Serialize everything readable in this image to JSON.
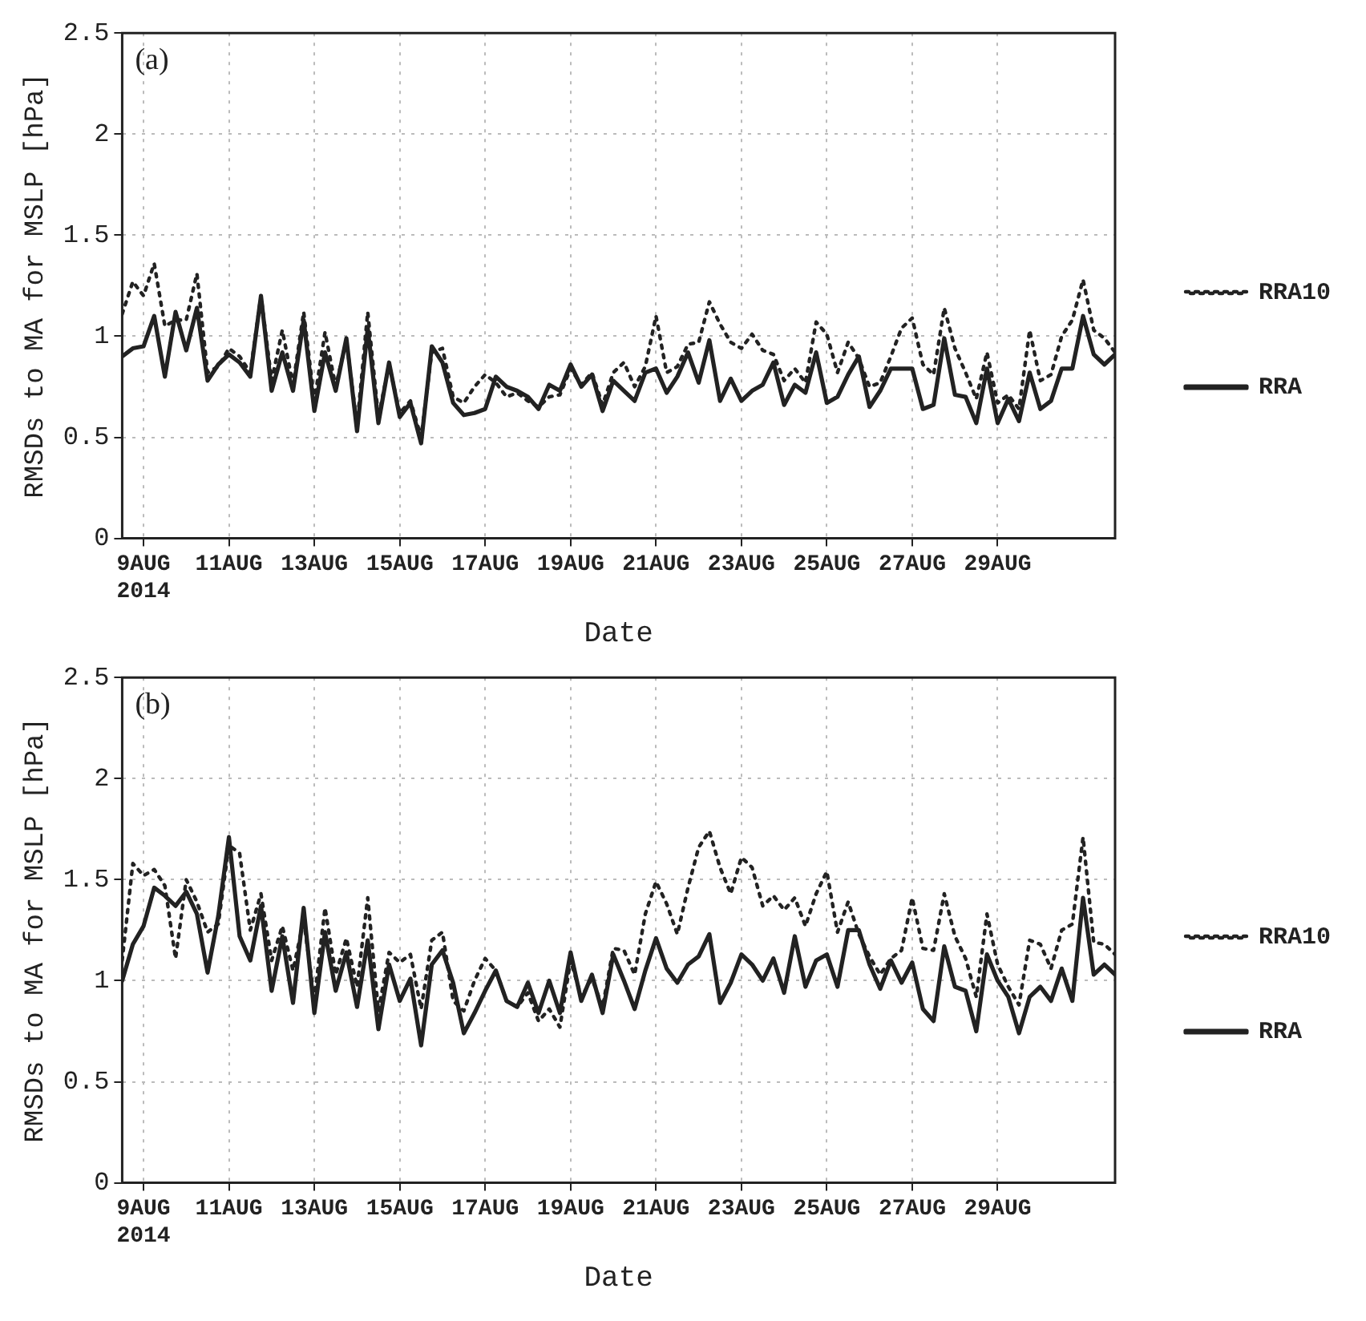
{
  "chart_data": [
    {
      "type": "line",
      "annotations": [
        "(a)"
      ],
      "xlabel": "Date",
      "ylabel": "RMSDs to MA for MSLP [hPa]",
      "x": [
        "2014-08-08T12:00",
        "2014-08-08T18:00",
        "2014-08-09T00:00",
        "2014-08-09T06:00",
        "2014-08-09T12:00",
        "2014-08-09T18:00",
        "2014-08-10T00:00",
        "2014-08-10T06:00",
        "2014-08-10T12:00",
        "2014-08-10T18:00",
        "2014-08-11T00:00",
        "2014-08-11T06:00",
        "2014-08-11T12:00",
        "2014-08-11T18:00",
        "2014-08-12T00:00",
        "2014-08-12T06:00",
        "2014-08-12T12:00",
        "2014-08-12T18:00",
        "2014-08-13T00:00",
        "2014-08-13T06:00",
        "2014-08-13T12:00",
        "2014-08-13T18:00",
        "2014-08-14T00:00",
        "2014-08-14T06:00",
        "2014-08-14T12:00",
        "2014-08-14T18:00",
        "2014-08-15T00:00",
        "2014-08-15T06:00",
        "2014-08-15T12:00",
        "2014-08-15T18:00",
        "2014-08-16T00:00",
        "2014-08-16T06:00",
        "2014-08-16T12:00",
        "2014-08-16T18:00",
        "2014-08-17T00:00",
        "2014-08-17T06:00",
        "2014-08-17T12:00",
        "2014-08-17T18:00",
        "2014-08-18T00:00",
        "2014-08-18T06:00",
        "2014-08-18T12:00",
        "2014-08-18T18:00",
        "2014-08-19T00:00",
        "2014-08-19T06:00",
        "2014-08-19T12:00",
        "2014-08-19T18:00",
        "2014-08-20T00:00",
        "2014-08-20T06:00",
        "2014-08-20T12:00",
        "2014-08-20T18:00",
        "2014-08-21T00:00",
        "2014-08-21T06:00",
        "2014-08-21T12:00",
        "2014-08-21T18:00",
        "2014-08-22T00:00",
        "2014-08-22T06:00",
        "2014-08-22T12:00",
        "2014-08-22T18:00",
        "2014-08-23T00:00",
        "2014-08-23T06:00",
        "2014-08-23T12:00",
        "2014-08-23T18:00",
        "2014-08-24T00:00",
        "2014-08-24T06:00",
        "2014-08-24T12:00",
        "2014-08-24T18:00",
        "2014-08-25T00:00",
        "2014-08-25T06:00",
        "2014-08-25T12:00",
        "2014-08-25T18:00",
        "2014-08-26T00:00",
        "2014-08-26T06:00",
        "2014-08-26T12:00",
        "2014-08-26T18:00",
        "2014-08-27T00:00",
        "2014-08-27T06:00",
        "2014-08-27T12:00",
        "2014-08-27T18:00",
        "2014-08-28T00:00",
        "2014-08-28T06:00",
        "2014-08-28T12:00",
        "2014-08-28T18:00",
        "2014-08-29T00:00",
        "2014-08-29T06:00",
        "2014-08-29T12:00",
        "2014-08-29T18:00",
        "2014-08-30T00:00",
        "2014-08-30T06:00",
        "2014-08-30T12:00",
        "2014-08-30T18:00",
        "2014-08-31T00:00",
        "2014-08-31T06:00",
        "2014-08-31T12:00",
        "2014-08-31T18:00"
      ],
      "series": [
        {
          "name": "RRA10",
          "color": "#222222",
          "line_style": "dotted",
          "values": [
            1.11,
            1.27,
            1.2,
            1.36,
            1.05,
            1.08,
            1.08,
            1.31,
            0.82,
            0.85,
            0.94,
            0.9,
            0.82,
            1.2,
            0.78,
            1.03,
            0.76,
            1.12,
            0.68,
            1.02,
            0.75,
            0.98,
            0.56,
            1.12,
            0.6,
            0.86,
            0.62,
            0.68,
            0.5,
            0.92,
            0.94,
            0.7,
            0.67,
            0.75,
            0.81,
            0.77,
            0.7,
            0.72,
            0.68,
            0.65,
            0.7,
            0.71,
            0.84,
            0.76,
            0.82,
            0.66,
            0.82,
            0.87,
            0.75,
            0.85,
            1.1,
            0.82,
            0.85,
            0.96,
            0.97,
            1.17,
            1.06,
            0.97,
            0.94,
            1.01,
            0.93,
            0.91,
            0.78,
            0.84,
            0.77,
            1.07,
            1.01,
            0.82,
            0.97,
            0.89,
            0.75,
            0.77,
            0.9,
            1.04,
            1.09,
            0.86,
            0.81,
            1.14,
            0.94,
            0.82,
            0.69,
            0.92,
            0.67,
            0.71,
            0.64,
            1.03,
            0.78,
            0.81,
            1.0,
            1.08,
            1.28,
            1.03,
            0.99,
            0.92
          ]
        },
        {
          "name": "RRA",
          "color": "#222222",
          "line_style": "solid",
          "values": [
            0.9,
            0.94,
            0.95,
            1.1,
            0.8,
            1.12,
            0.93,
            1.14,
            0.78,
            0.86,
            0.91,
            0.87,
            0.8,
            1.2,
            0.73,
            0.92,
            0.73,
            1.08,
            0.63,
            0.92,
            0.73,
            0.99,
            0.53,
            1.04,
            0.57,
            0.87,
            0.6,
            0.67,
            0.47,
            0.95,
            0.87,
            0.67,
            0.61,
            0.62,
            0.64,
            0.8,
            0.75,
            0.73,
            0.7,
            0.64,
            0.76,
            0.73,
            0.86,
            0.75,
            0.81,
            0.63,
            0.78,
            0.73,
            0.68,
            0.82,
            0.84,
            0.72,
            0.8,
            0.92,
            0.77,
            0.98,
            0.68,
            0.79,
            0.68,
            0.73,
            0.76,
            0.87,
            0.66,
            0.76,
            0.72,
            0.92,
            0.67,
            0.7,
            0.81,
            0.9,
            0.65,
            0.73,
            0.84,
            0.84,
            0.84,
            0.64,
            0.66,
            0.99,
            0.71,
            0.7,
            0.57,
            0.84,
            0.57,
            0.69,
            0.58,
            0.82,
            0.64,
            0.68,
            0.84,
            0.84,
            1.1,
            0.91,
            0.86,
            0.91
          ]
        }
      ],
      "xlim": [
        "2014-08-08T12:00",
        "2014-08-31T18:00"
      ],
      "ylim": [
        0,
        2.5
      ],
      "xticks": [
        {
          "value": "2014-08-09",
          "label": "9AUG\n2014"
        },
        {
          "value": "2014-08-11",
          "label": "11AUG"
        },
        {
          "value": "2014-08-13",
          "label": "13AUG"
        },
        {
          "value": "2014-08-15",
          "label": "15AUG"
        },
        {
          "value": "2014-08-17",
          "label": "17AUG"
        },
        {
          "value": "2014-08-19",
          "label": "19AUG"
        },
        {
          "value": "2014-08-21",
          "label": "21AUG"
        },
        {
          "value": "2014-08-23",
          "label": "23AUG"
        },
        {
          "value": "2014-08-25",
          "label": "25AUG"
        },
        {
          "value": "2014-08-27",
          "label": "27AUG"
        },
        {
          "value": "2014-08-29",
          "label": "29AUG"
        }
      ],
      "yticks": [
        0,
        0.5,
        1,
        1.5,
        2,
        2.5
      ],
      "grid": true,
      "legend": "right"
    },
    {
      "type": "line",
      "annotations": [
        "(b)"
      ],
      "xlabel": "Date",
      "ylabel": "RMSDs to MA for MSLP [hPa]",
      "x": [
        "2014-08-08T12:00",
        "2014-08-08T18:00",
        "2014-08-09T00:00",
        "2014-08-09T06:00",
        "2014-08-09T12:00",
        "2014-08-09T18:00",
        "2014-08-10T00:00",
        "2014-08-10T06:00",
        "2014-08-10T12:00",
        "2014-08-10T18:00",
        "2014-08-11T00:00",
        "2014-08-11T06:00",
        "2014-08-11T12:00",
        "2014-08-11T18:00",
        "2014-08-12T00:00",
        "2014-08-12T06:00",
        "2014-08-12T12:00",
        "2014-08-12T18:00",
        "2014-08-13T00:00",
        "2014-08-13T06:00",
        "2014-08-13T12:00",
        "2014-08-13T18:00",
        "2014-08-14T00:00",
        "2014-08-14T06:00",
        "2014-08-14T12:00",
        "2014-08-14T18:00",
        "2014-08-15T00:00",
        "2014-08-15T06:00",
        "2014-08-15T12:00",
        "2014-08-15T18:00",
        "2014-08-16T00:00",
        "2014-08-16T06:00",
        "2014-08-16T12:00",
        "2014-08-16T18:00",
        "2014-08-17T00:00",
        "2014-08-17T06:00",
        "2014-08-17T12:00",
        "2014-08-17T18:00",
        "2014-08-18T00:00",
        "2014-08-18T06:00",
        "2014-08-18T12:00",
        "2014-08-18T18:00",
        "2014-08-19T00:00",
        "2014-08-19T06:00",
        "2014-08-19T12:00",
        "2014-08-19T18:00",
        "2014-08-20T00:00",
        "2014-08-20T06:00",
        "2014-08-20T12:00",
        "2014-08-20T18:00",
        "2014-08-21T00:00",
        "2014-08-21T06:00",
        "2014-08-21T12:00",
        "2014-08-21T18:00",
        "2014-08-22T00:00",
        "2014-08-22T06:00",
        "2014-08-22T12:00",
        "2014-08-22T18:00",
        "2014-08-23T00:00",
        "2014-08-23T06:00",
        "2014-08-23T12:00",
        "2014-08-23T18:00",
        "2014-08-24T00:00",
        "2014-08-24T06:00",
        "2014-08-24T12:00",
        "2014-08-24T18:00",
        "2014-08-25T00:00",
        "2014-08-25T06:00",
        "2014-08-25T12:00",
        "2014-08-25T18:00",
        "2014-08-26T00:00",
        "2014-08-26T06:00",
        "2014-08-26T12:00",
        "2014-08-26T18:00",
        "2014-08-27T00:00",
        "2014-08-27T06:00",
        "2014-08-27T12:00",
        "2014-08-27T18:00",
        "2014-08-28T00:00",
        "2014-08-28T06:00",
        "2014-08-28T12:00",
        "2014-08-28T18:00",
        "2014-08-29T00:00",
        "2014-08-29T06:00",
        "2014-08-29T12:00",
        "2014-08-29T18:00",
        "2014-08-30T00:00",
        "2014-08-30T06:00",
        "2014-08-30T12:00",
        "2014-08-30T18:00",
        "2014-08-31T00:00",
        "2014-08-31T06:00",
        "2014-08-31T12:00",
        "2014-08-31T18:00"
      ],
      "series": [
        {
          "name": "RRA10",
          "color": "#222222",
          "line_style": "dotted",
          "values": [
            1.1,
            1.58,
            1.52,
            1.55,
            1.47,
            1.11,
            1.5,
            1.39,
            1.24,
            1.28,
            1.67,
            1.63,
            1.25,
            1.43,
            1.1,
            1.27,
            1.05,
            1.3,
            0.91,
            1.36,
            1.03,
            1.21,
            0.97,
            1.41,
            0.85,
            1.14,
            1.09,
            1.13,
            0.86,
            1.2,
            1.24,
            0.9,
            0.85,
            1.0,
            1.11,
            1.05,
            0.9,
            0.87,
            0.94,
            0.8,
            0.86,
            0.77,
            1.1,
            0.92,
            1.01,
            0.87,
            1.16,
            1.15,
            1.03,
            1.33,
            1.49,
            1.38,
            1.23,
            1.46,
            1.66,
            1.74,
            1.56,
            1.43,
            1.61,
            1.56,
            1.37,
            1.42,
            1.35,
            1.41,
            1.27,
            1.43,
            1.54,
            1.24,
            1.39,
            1.23,
            1.12,
            1.03,
            1.11,
            1.15,
            1.41,
            1.16,
            1.15,
            1.43,
            1.22,
            1.11,
            0.92,
            1.33,
            1.08,
            0.97,
            0.88,
            1.2,
            1.18,
            1.06,
            1.25,
            1.28,
            1.71,
            1.19,
            1.18,
            1.13
          ]
        },
        {
          "name": "RRA",
          "color": "#222222",
          "line_style": "solid",
          "values": [
            1.0,
            1.18,
            1.27,
            1.46,
            1.42,
            1.37,
            1.44,
            1.33,
            1.04,
            1.32,
            1.71,
            1.22,
            1.1,
            1.37,
            0.95,
            1.22,
            0.89,
            1.36,
            0.84,
            1.24,
            0.95,
            1.14,
            0.87,
            1.2,
            0.76,
            1.08,
            0.9,
            1.01,
            0.68,
            1.08,
            1.15,
            0.99,
            0.74,
            0.84,
            0.95,
            1.05,
            0.9,
            0.87,
            0.99,
            0.84,
            1.0,
            0.84,
            1.14,
            0.9,
            1.03,
            0.84,
            1.13,
            1.0,
            0.86,
            1.05,
            1.21,
            1.06,
            0.99,
            1.08,
            1.12,
            1.23,
            0.89,
            0.99,
            1.13,
            1.08,
            1.0,
            1.11,
            0.94,
            1.22,
            0.97,
            1.1,
            1.13,
            0.97,
            1.25,
            1.25,
            1.08,
            0.96,
            1.1,
            0.99,
            1.09,
            0.86,
            0.8,
            1.17,
            0.97,
            0.95,
            0.75,
            1.13,
            1.0,
            0.92,
            0.74,
            0.92,
            0.97,
            0.9,
            1.06,
            0.9,
            1.41,
            1.03,
            1.08,
            1.03
          ]
        }
      ],
      "xlim": [
        "2014-08-08T12:00",
        "2014-08-31T18:00"
      ],
      "ylim": [
        0,
        2.5
      ],
      "xticks": [
        {
          "value": "2014-08-09",
          "label": "9AUG\n2014"
        },
        {
          "value": "2014-08-11",
          "label": "11AUG"
        },
        {
          "value": "2014-08-13",
          "label": "13AUG"
        },
        {
          "value": "2014-08-15",
          "label": "15AUG"
        },
        {
          "value": "2014-08-17",
          "label": "17AUG"
        },
        {
          "value": "2014-08-19",
          "label": "19AUG"
        },
        {
          "value": "2014-08-21",
          "label": "21AUG"
        },
        {
          "value": "2014-08-23",
          "label": "23AUG"
        },
        {
          "value": "2014-08-25",
          "label": "25AUG"
        },
        {
          "value": "2014-08-27",
          "label": "27AUG"
        },
        {
          "value": "2014-08-29",
          "label": "29AUG"
        }
      ],
      "yticks": [
        0,
        0.5,
        1,
        1.5,
        2,
        2.5
      ],
      "grid": true,
      "legend": "right"
    }
  ]
}
